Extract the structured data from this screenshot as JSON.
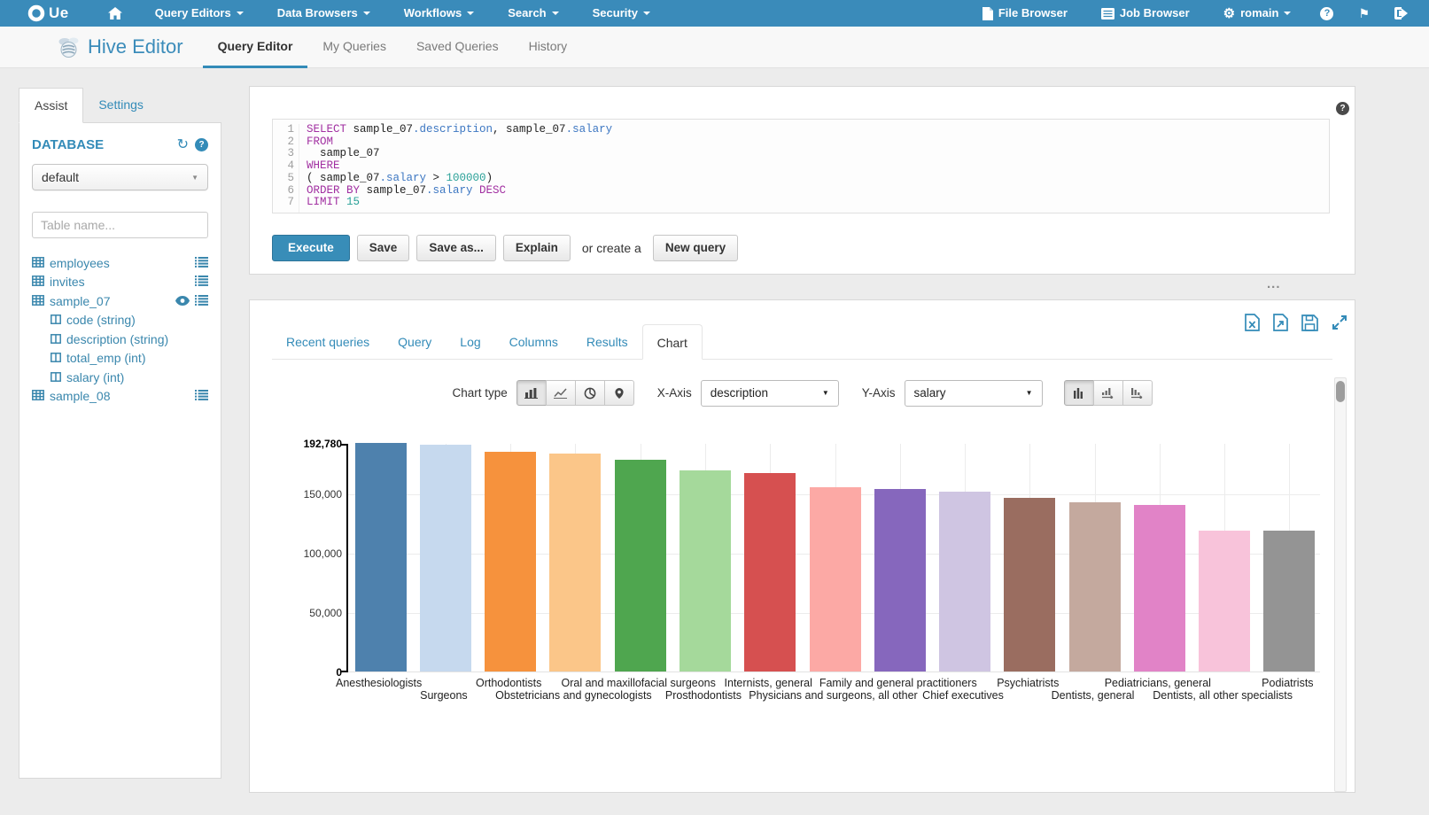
{
  "navbar": {
    "brand": "Ue",
    "menus": [
      {
        "label": "Query Editors"
      },
      {
        "label": "Data Browsers"
      },
      {
        "label": "Workflows"
      },
      {
        "label": "Search"
      },
      {
        "label": "Security"
      }
    ],
    "file_browser": "File Browser",
    "job_browser": "Job Browser",
    "user": "romain"
  },
  "subnav": {
    "app_title": "Hive Editor",
    "tabs": [
      {
        "label": "Query Editor",
        "active": true
      },
      {
        "label": "My Queries",
        "active": false
      },
      {
        "label": "Saved Queries",
        "active": false
      },
      {
        "label": "History",
        "active": false
      }
    ]
  },
  "sidebar": {
    "assist_tab": "Assist",
    "settings_tab": "Settings",
    "database_label": "DATABASE",
    "database_value": "default",
    "table_filter_placeholder": "Table name...",
    "tables": [
      {
        "name": "employees",
        "eye": false,
        "menu": true,
        "columns": []
      },
      {
        "name": "invites",
        "eye": false,
        "menu": true,
        "columns": []
      },
      {
        "name": "sample_07",
        "eye": true,
        "menu": true,
        "columns": [
          {
            "name": "code",
            "type": "string"
          },
          {
            "name": "description",
            "type": "string"
          },
          {
            "name": "total_emp",
            "type": "int"
          },
          {
            "name": "salary",
            "type": "int"
          }
        ]
      },
      {
        "name": "sample_08",
        "eye": false,
        "menu": true,
        "columns": []
      }
    ]
  },
  "editor": {
    "sql_lines": [
      [
        [
          "kw",
          "SELECT"
        ],
        [
          "pl",
          " sample_07"
        ],
        [
          "at",
          ".description"
        ],
        [
          "pl",
          ", sample_07"
        ],
        [
          "at",
          ".salary"
        ]
      ],
      [
        [
          "kw",
          "FROM"
        ]
      ],
      [
        [
          "pl",
          "  sample_07"
        ]
      ],
      [
        [
          "kw",
          "WHERE"
        ]
      ],
      [
        [
          "pl",
          "( sample_07"
        ],
        [
          "at",
          ".salary"
        ],
        [
          "pl",
          " > "
        ],
        [
          "nm",
          "100000"
        ],
        [
          "pl",
          ")"
        ]
      ],
      [
        [
          "kw",
          "ORDER BY"
        ],
        [
          "pl",
          " sample_07"
        ],
        [
          "at",
          ".salary"
        ],
        [
          "kw",
          " DESC"
        ]
      ],
      [
        [
          "kw",
          "LIMIT"
        ],
        [
          "nm",
          " 15"
        ]
      ]
    ],
    "execute": "Execute",
    "save": "Save",
    "save_as": "Save as...",
    "explain": "Explain",
    "or_create": "or create a",
    "new_query": "New query"
  },
  "results": {
    "tabs": [
      "Recent queries",
      "Query",
      "Log",
      "Columns",
      "Results",
      "Chart"
    ],
    "active_tab": "Chart",
    "chart_type_label": "Chart type",
    "x_axis_label": "X-Axis",
    "x_axis_value": "description",
    "y_axis_label": "Y-Axis",
    "y_axis_value": "salary"
  },
  "icons": {
    "select_caret": "▼",
    "refresh": "↻",
    "help": "?",
    "flag": "⚑",
    "gears": "⚙",
    "resize_dots": "..."
  },
  "colors": {
    "brand_blue": "#338bb8",
    "navbar_blue": "#3a8bba"
  },
  "chart_data": {
    "type": "bar",
    "title": "",
    "xlabel": "description",
    "ylabel": "salary",
    "categories": [
      "Anesthesiologists",
      "Surgeons",
      "Orthodontists",
      "Obstetricians and gynecologists",
      "Oral and maxillofacial surgeons",
      "Prosthodontists",
      "Internists, general",
      "Physicians and surgeons, all other",
      "Family and general practitioners",
      "Chief executives",
      "Psychiatrists",
      "Dentists, general",
      "Pediatricians, general",
      "Dentists, all other specialists",
      "Podiatrists"
    ],
    "values": [
      192780,
      191410,
      185340,
      183600,
      178440,
      169810,
      167270,
      155150,
      153640,
      151370,
      146460,
      142870,
      140690,
      118790,
      118500
    ],
    "bar_colors": [
      "#4e81ad",
      "#c6d9ee",
      "#f6923d",
      "#fbc689",
      "#4fa64f",
      "#a5d99b",
      "#d65050",
      "#fca9a5",
      "#8667bd",
      "#cfc5e2",
      "#9a6d60",
      "#c4a99e",
      "#e183c7",
      "#f8c3da",
      "#949494"
    ],
    "ylim": [
      0,
      192780
    ],
    "yticks": [
      {
        "v": 0,
        "label": "0",
        "bold": true
      },
      {
        "v": 50000,
        "label": "50,000",
        "bold": false
      },
      {
        "v": 100000,
        "label": "100,000",
        "bold": false
      },
      {
        "v": 150000,
        "label": "150,000",
        "bold": false
      },
      {
        "v": 192780,
        "label": "192,780",
        "bold": true
      }
    ],
    "grid": true,
    "legend": "none"
  }
}
